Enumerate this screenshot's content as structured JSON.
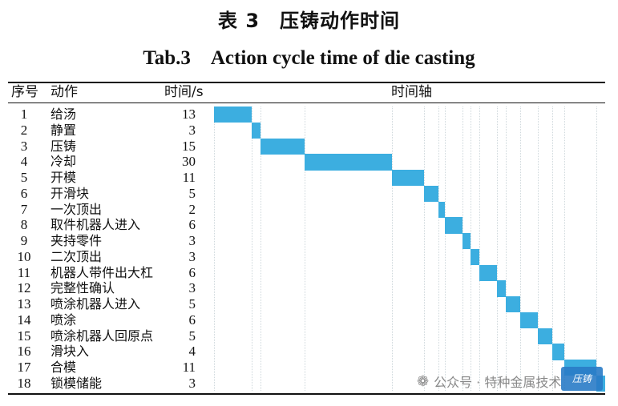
{
  "title_cn": "表 3　压铸动作时间",
  "title_en": "Tab.3　Action cycle time of die casting",
  "header": {
    "no": "序号",
    "action": "动作",
    "time": "时间/s",
    "timeline": "时间轴"
  },
  "colors": {
    "bar": "#3caee0",
    "rule": "#111111"
  },
  "rows": [
    {
      "no": "1",
      "action": "给汤",
      "time": "13"
    },
    {
      "no": "2",
      "action": "静置",
      "time": "3"
    },
    {
      "no": "3",
      "action": "压铸",
      "time": "15"
    },
    {
      "no": "4",
      "action": "冷却",
      "time": "30"
    },
    {
      "no": "5",
      "action": "开模",
      "time": "11"
    },
    {
      "no": "6",
      "action": "开滑块",
      "time": "5"
    },
    {
      "no": "7",
      "action": "一次顶出",
      "time": "2"
    },
    {
      "no": "8",
      "action": "取件机器人进入",
      "time": "6"
    },
    {
      "no": "9",
      "action": "夹持零件",
      "time": "3"
    },
    {
      "no": "10",
      "action": "二次顶出",
      "time": "3"
    },
    {
      "no": "11",
      "action": "机器人带件出大杠",
      "time": "6"
    },
    {
      "no": "12",
      "action": "完整性确认",
      "time": "3"
    },
    {
      "no": "13",
      "action": "喷涂机器人进入",
      "time": "5"
    },
    {
      "no": "14",
      "action": "喷涂",
      "time": "6"
    },
    {
      "no": "15",
      "action": "喷涂机器人回原点",
      "time": "5"
    },
    {
      "no": "16",
      "action": "滑块入",
      "time": "4"
    },
    {
      "no": "17",
      "action": "合模",
      "time": "11"
    },
    {
      "no": "18",
      "action": "锁模储能",
      "time": "3"
    }
  ],
  "watermark": {
    "text": "公众号 · 特种金属技术",
    "stamp": "压铸"
  }
}
